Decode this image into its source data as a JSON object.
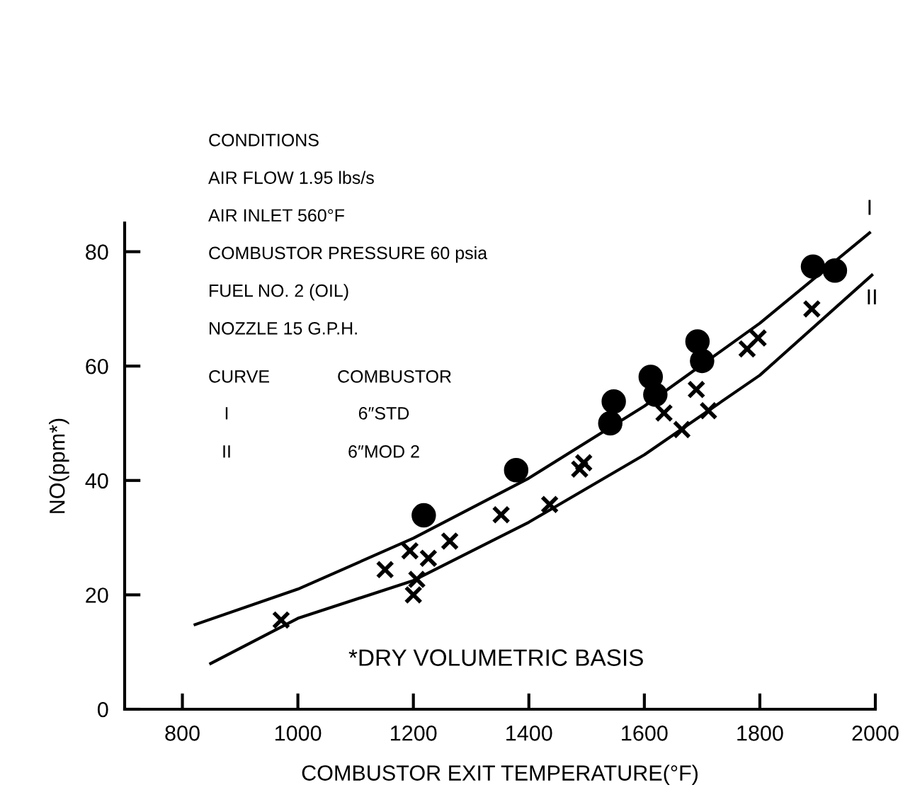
{
  "chart_data": {
    "type": "scatter",
    "xlabel": "COMBUSTOR EXIT TEMPERATURE(°F)",
    "ylabel": "NO(ppm*)",
    "xlim": [
      700,
      2000
    ],
    "xticks": [
      800,
      1000,
      1200,
      1400,
      1600,
      1800,
      2000
    ],
    "ylim": [
      0,
      85
    ],
    "yticks": [
      0,
      20,
      40,
      60,
      80
    ],
    "grid": false,
    "series": [
      {
        "marker": "circle",
        "color": "#000000",
        "x": [
          1218,
          1378,
          1541,
          1547,
          1611,
          1619,
          1692,
          1700,
          1892,
          1930
        ],
        "values": [
          33.9,
          41.8,
          50.0,
          53.8,
          58.1,
          55.0,
          64.3,
          60.9,
          77.4,
          76.7
        ]
      },
      {
        "marker": "cross",
        "color": "#000000",
        "x": [
          971,
          1151,
          1194,
          1226,
          1206,
          1200,
          1263,
          1352,
          1436,
          1488,
          1495,
          1634,
          1665,
          1690,
          1711,
          1778,
          1797,
          1890
        ],
        "values": [
          15.6,
          24.4,
          27.7,
          26.4,
          22.7,
          20.0,
          29.4,
          34.0,
          35.8,
          42.0,
          43.1,
          51.8,
          48.9,
          55.9,
          52.2,
          63.0,
          64.9,
          70.0
        ]
      },
      {
        "type": "line",
        "name": "I",
        "marker": "none",
        "line_style": "solid",
        "color": "#000000",
        "x": [
          822,
          1000,
          1200,
          1400,
          1600,
          1800,
          1990
        ],
        "values": [
          14.8,
          21.0,
          29.9,
          40.4,
          53.0,
          67.5,
          83.3
        ]
      },
      {
        "type": "line",
        "name": "II",
        "marker": "none",
        "line_style": "solid",
        "color": "#000000",
        "x": [
          849,
          1000,
          1200,
          1400,
          1600,
          1800,
          1994
        ],
        "values": [
          8.0,
          15.9,
          22.5,
          32.7,
          44.5,
          58.4,
          75.9
        ]
      }
    ],
    "annotations": [
      "CONDITIONS",
      "AIR FLOW 1.95 lbs/s",
      "AIR INLET 560°F",
      "COMBUSTOR PRESSURE 60 psia",
      "FUEL NO. 2 (OIL)",
      "NOZZLE 15 G.P.H.",
      "CURVE",
      "COMBUSTOR",
      "I",
      "6″STD",
      "II",
      "6″MOD 2",
      "*DRY VOLUMETRIC BASIS"
    ]
  }
}
